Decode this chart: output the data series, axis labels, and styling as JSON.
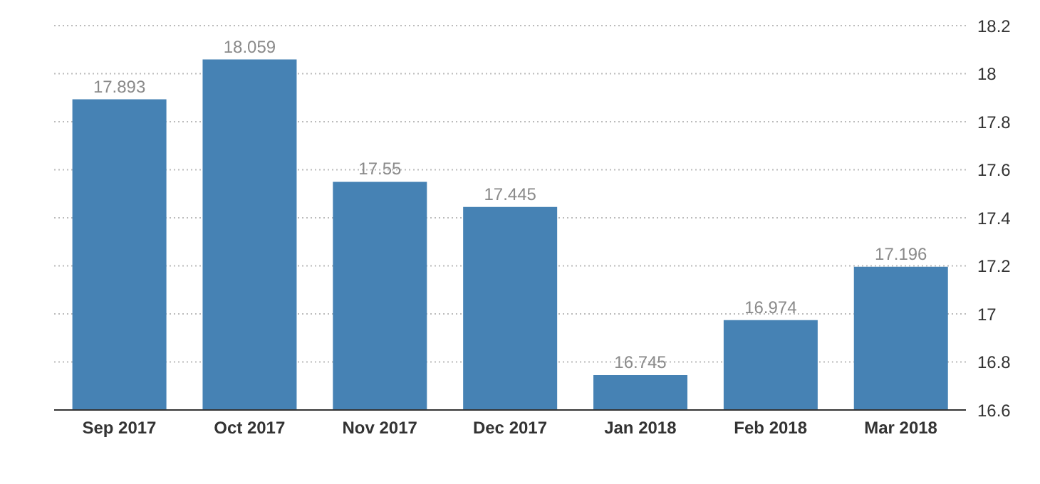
{
  "chart_data": {
    "type": "bar",
    "categories": [
      "Sep 2017",
      "Oct 2017",
      "Nov 2017",
      "Dec 2017",
      "Jan 2018",
      "Feb 2018",
      "Mar 2018"
    ],
    "values": [
      17.893,
      18.059,
      17.55,
      17.445,
      16.745,
      16.974,
      17.196
    ],
    "color": "#4682b4",
    "ylim": [
      16.6,
      18.2
    ],
    "yticks": [
      16.6,
      16.8,
      17,
      17.2,
      17.4,
      17.6,
      17.8,
      18,
      18.2
    ],
    "grid": "y",
    "data_labels": true
  }
}
